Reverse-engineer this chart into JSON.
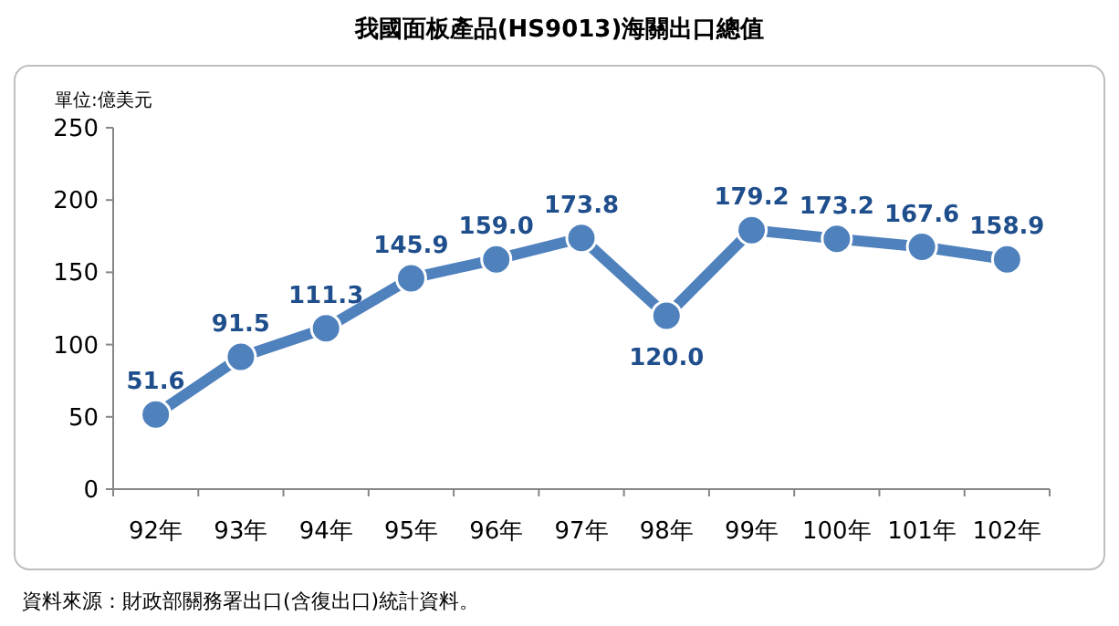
{
  "chart_data": {
    "type": "line",
    "title": "我國面板產品(HS9013)海關出口總值",
    "ylabel": "單位:億美元",
    "categories": [
      "92年",
      "93年",
      "94年",
      "95年",
      "96年",
      "97年",
      "98年",
      "99年",
      "100年",
      "101年",
      "102年"
    ],
    "series": [
      {
        "color": "#4f81bd",
        "values": [
          51.6,
          91.5,
          111.3,
          145.9,
          159.0,
          173.8,
          120.0,
          179.2,
          173.2,
          167.6,
          158.9
        ],
        "value_labels": [
          "51.6",
          "91.5",
          "111.3",
          "145.9",
          "159.0",
          "173.8",
          "120.0",
          "179.2",
          "173.2",
          "167.6",
          "158.9"
        ]
      }
    ],
    "ylim": [
      0,
      250
    ],
    "yticks": [
      0,
      50,
      100,
      150,
      200,
      250
    ],
    "marker": "circle",
    "line_style": "solid",
    "annotations": [
      "資料來源：財政部關務署出口(含復出口)統計資料。"
    ]
  }
}
